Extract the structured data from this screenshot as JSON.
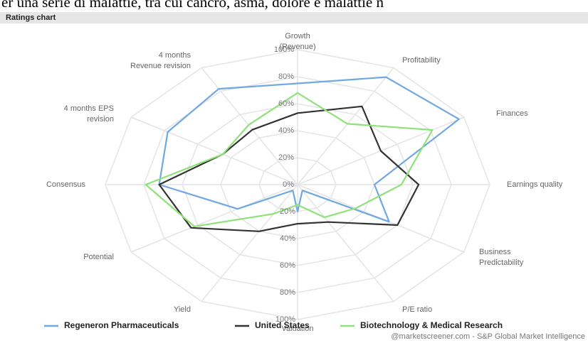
{
  "header_text": "er una serie di malattie, tra cui cancro, asma, dolore e malattie n",
  "chart_data": {
    "type": "radar",
    "title": "Ratings chart",
    "categories": [
      [
        "Growth",
        "(Revenue)"
      ],
      [
        "Profitability"
      ],
      [
        "Finances"
      ],
      [
        "Earnings quality"
      ],
      [
        "Business",
        "Predictability"
      ],
      [
        "P/E ratio"
      ],
      [
        "Valuation"
      ],
      [
        "Yield"
      ],
      [
        "Potential"
      ],
      [
        "Consensus"
      ],
      [
        "4 months EPS",
        "revision"
      ],
      [
        "4 months",
        "Revenue revision"
      ]
    ],
    "series": [
      {
        "name": "Regeneron Pharmaceuticals",
        "color": "#6fa8e2",
        "values": [
          75,
          92,
          97,
          40,
          55,
          5,
          20,
          5,
          36,
          72,
          78,
          82
        ]
      },
      {
        "name": "United States",
        "color": "#333333",
        "values": [
          53,
          67,
          50,
          63,
          60,
          32,
          29,
          40,
          64,
          72,
          45,
          47
        ]
      },
      {
        "name": "Biotechnology & Medical Research",
        "color": "#8fe27a",
        "values": [
          68,
          52,
          81,
          54,
          35,
          28,
          15,
          25,
          62,
          79,
          45,
          51
        ]
      }
    ],
    "rlim": [
      0,
      100
    ],
    "rticks": [
      {
        "value": 0,
        "label": "0%"
      },
      {
        "value": 20,
        "label": "20%"
      },
      {
        "value": 40,
        "label": "40%"
      },
      {
        "value": 60,
        "label": "60%"
      },
      {
        "value": 80,
        "label": "80%"
      },
      {
        "value": 100,
        "label": "100%"
      }
    ],
    "grid": true,
    "legend": "bottom",
    "source": "@marketscreener.com - S&P Global Market Intelligence"
  }
}
